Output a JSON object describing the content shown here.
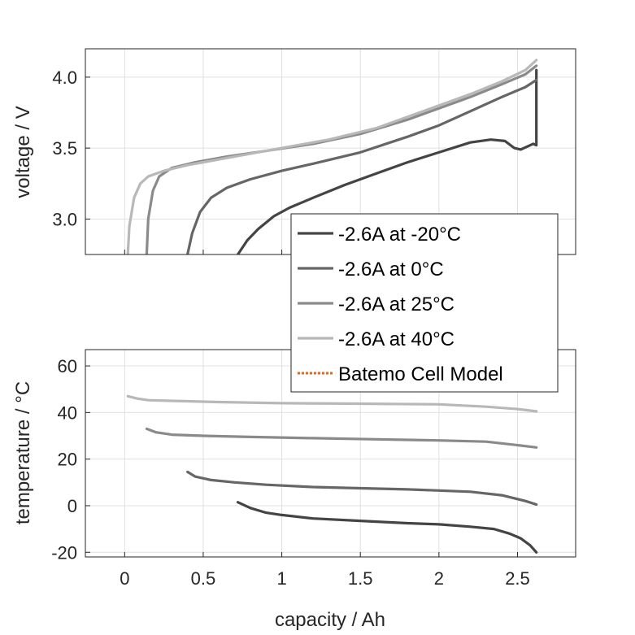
{
  "chart_data": [
    {
      "type": "line",
      "ylabel": "voltage / V",
      "xlabel": "",
      "xlim": [
        -0.25,
        2.87
      ],
      "ylim": [
        2.75,
        4.2
      ],
      "yticks": [
        "3.0",
        "3.5",
        "4.0"
      ],
      "ytick_values": [
        3.0,
        3.5,
        4.0
      ],
      "grid": true,
      "series": [
        {
          "name": "-2.6A at -20°C",
          "color": "#444444",
          "x": [
            0.72,
            0.78,
            0.85,
            0.95,
            1.05,
            1.2,
            1.4,
            1.6,
            1.8,
            2.0,
            2.2,
            2.33,
            2.42,
            2.48,
            2.52,
            2.56,
            2.6,
            2.62,
            2.62
          ],
          "y": [
            2.75,
            2.85,
            2.93,
            3.02,
            3.08,
            3.15,
            3.24,
            3.32,
            3.4,
            3.47,
            3.54,
            3.56,
            3.55,
            3.5,
            3.49,
            3.51,
            3.53,
            3.52,
            4.05
          ]
        },
        {
          "name": "-2.6A at 0°C",
          "color": "#666666",
          "x": [
            0.4,
            0.43,
            0.48,
            0.55,
            0.65,
            0.8,
            1.0,
            1.2,
            1.5,
            1.8,
            2.0,
            2.2,
            2.4,
            2.55,
            2.62
          ],
          "y": [
            2.75,
            2.9,
            3.05,
            3.15,
            3.22,
            3.28,
            3.34,
            3.39,
            3.47,
            3.58,
            3.66,
            3.76,
            3.86,
            3.93,
            3.98
          ]
        },
        {
          "name": "-2.6A at 25°C",
          "color": "#8a8a8a",
          "x": [
            0.14,
            0.15,
            0.18,
            0.22,
            0.3,
            0.45,
            0.65,
            0.9,
            1.2,
            1.5,
            1.8,
            2.0,
            2.2,
            2.4,
            2.55,
            2.62
          ],
          "y": [
            2.75,
            3.0,
            3.2,
            3.3,
            3.36,
            3.4,
            3.44,
            3.48,
            3.53,
            3.6,
            3.7,
            3.78,
            3.86,
            3.95,
            4.02,
            4.08
          ]
        },
        {
          "name": "-2.6A at 40°C",
          "color": "#b8b8b8",
          "x": [
            0.02,
            0.03,
            0.06,
            0.1,
            0.15,
            0.25,
            0.4,
            0.6,
            0.8,
            1.0,
            1.3,
            1.6,
            1.8,
            2.0,
            2.2,
            2.4,
            2.55,
            2.62
          ],
          "y": [
            2.75,
            2.95,
            3.15,
            3.25,
            3.3,
            3.34,
            3.38,
            3.42,
            3.46,
            3.5,
            3.56,
            3.64,
            3.72,
            3.8,
            3.88,
            3.97,
            4.05,
            4.12
          ]
        },
        {
          "name": "Batemo Cell Model",
          "color": "#e8641e",
          "dashed": true,
          "x": [],
          "y": []
        }
      ]
    },
    {
      "type": "line",
      "ylabel": "temperature / °C",
      "xlabel": "capacity / Ah",
      "xlim": [
        -0.25,
        2.87
      ],
      "ylim": [
        -22,
        67
      ],
      "yticks": [
        "-20",
        "0",
        "20",
        "40",
        "60"
      ],
      "ytick_values": [
        -20,
        0,
        20,
        40,
        60
      ],
      "xticks": [
        "0",
        "0.5",
        "1",
        "1.5",
        "2",
        "2.5"
      ],
      "xtick_values": [
        0,
        0.5,
        1,
        1.5,
        2,
        2.5
      ],
      "grid": true,
      "series": [
        {
          "name": "-2.6A at -20°C",
          "color": "#444444",
          "x": [
            0.72,
            0.8,
            0.9,
            1.0,
            1.2,
            1.5,
            1.8,
            2.0,
            2.2,
            2.35,
            2.45,
            2.52,
            2.58,
            2.62
          ],
          "y": [
            1.5,
            -1,
            -3,
            -4,
            -5.5,
            -6.5,
            -7.5,
            -8,
            -9,
            -10,
            -12,
            -14,
            -17,
            -20
          ]
        },
        {
          "name": "-2.6A at 0°C",
          "color": "#666666",
          "x": [
            0.4,
            0.45,
            0.55,
            0.7,
            0.9,
            1.2,
            1.5,
            1.8,
            2.0,
            2.2,
            2.4,
            2.55,
            2.62
          ],
          "y": [
            14.5,
            12.5,
            11,
            10,
            9,
            8,
            7.5,
            7,
            6.5,
            6,
            4.5,
            2,
            0.5
          ]
        },
        {
          "name": "-2.6A at 25°C",
          "color": "#8a8a8a",
          "x": [
            0.14,
            0.2,
            0.3,
            0.5,
            0.8,
            1.2,
            1.6,
            2.0,
            2.3,
            2.5,
            2.62
          ],
          "y": [
            33,
            31.5,
            30.5,
            30,
            29.5,
            29,
            28.5,
            28,
            27.5,
            26,
            25
          ]
        },
        {
          "name": "-2.6A at 40°C",
          "color": "#b8b8b8",
          "x": [
            0.02,
            0.08,
            0.15,
            0.3,
            0.6,
            1.0,
            1.5,
            2.0,
            2.3,
            2.5,
            2.62
          ],
          "y": [
            47,
            46,
            45.3,
            45,
            44.5,
            44,
            43.8,
            43.5,
            42.5,
            41.5,
            40.5
          ]
        }
      ]
    }
  ],
  "legend": {
    "entries": [
      {
        "label": "-2.6A at -20°C",
        "color": "#444444",
        "dashed": false
      },
      {
        "label": "-2.6A at 0°C",
        "color": "#666666",
        "dashed": false
      },
      {
        "label": "-2.6A at 25°C",
        "color": "#8a8a8a",
        "dashed": false
      },
      {
        "label": "-2.6A at 40°C",
        "color": "#b8b8b8",
        "dashed": false
      },
      {
        "label": "Batemo Cell Model",
        "color": "#e8641e",
        "dashed": true
      }
    ]
  }
}
